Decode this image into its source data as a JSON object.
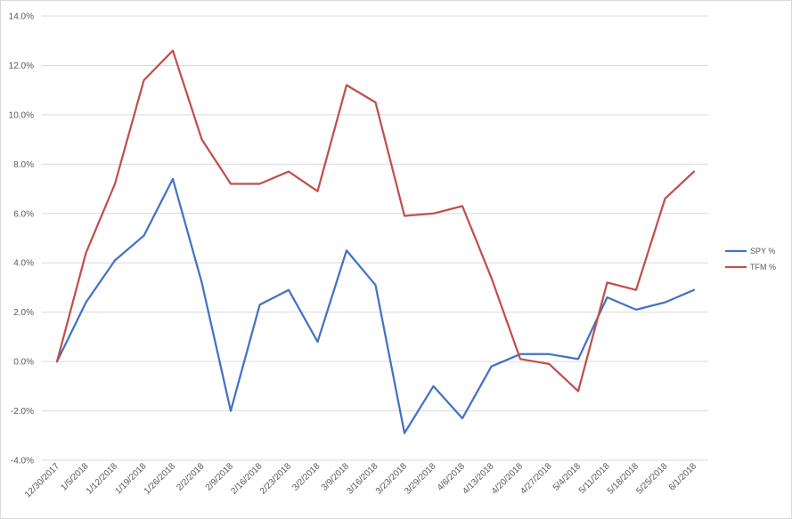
{
  "chart_data": {
    "type": "line",
    "title": "",
    "xlabel": "",
    "ylabel": "",
    "categories": [
      "12/30/2017",
      "1/5/2018",
      "1/12/2018",
      "1/19/2018",
      "1/26/2018",
      "2/2/2018",
      "2/9/2018",
      "2/16/2018",
      "2/23/2018",
      "3/2/2018",
      "3/9/2018",
      "3/16/2018",
      "3/23/2018",
      "3/29/2018",
      "4/6/2018",
      "4/13/2018",
      "4/20/2018",
      "4/27/2018",
      "5/4/2018",
      "5/11/2018",
      "5/18/2018",
      "5/25/2018",
      "6/1/2018"
    ],
    "ylim": [
      -4.0,
      14.0
    ],
    "y_ticks": [
      "14.0%",
      "12.0%",
      "10.0%",
      "8.0%",
      "6.0%",
      "4.0%",
      "2.0%",
      "0.0%",
      "-2.0%",
      "-4.0%"
    ],
    "y_tick_values": [
      14,
      12,
      10,
      8,
      6,
      4,
      2,
      0,
      -2,
      -4
    ],
    "grid": true,
    "legend_position": "right",
    "series": [
      {
        "name": "SPY %",
        "color": "#4472C4",
        "values": [
          0.0,
          2.4,
          4.1,
          5.1,
          7.4,
          3.2,
          -2.0,
          2.3,
          2.9,
          0.8,
          4.5,
          3.1,
          -2.9,
          -1.0,
          -2.3,
          -0.2,
          0.3,
          0.3,
          0.1,
          2.6,
          2.1,
          2.4,
          2.9
        ]
      },
      {
        "name": "TFM %",
        "color": "#C0504D",
        "values": [
          0.0,
          4.4,
          7.2,
          11.4,
          12.6,
          9.0,
          7.2,
          7.2,
          7.7,
          6.9,
          11.2,
          10.5,
          5.9,
          6.0,
          6.3,
          3.4,
          0.1,
          -0.1,
          -1.2,
          3.2,
          2.9,
          6.6,
          7.7
        ]
      }
    ]
  }
}
